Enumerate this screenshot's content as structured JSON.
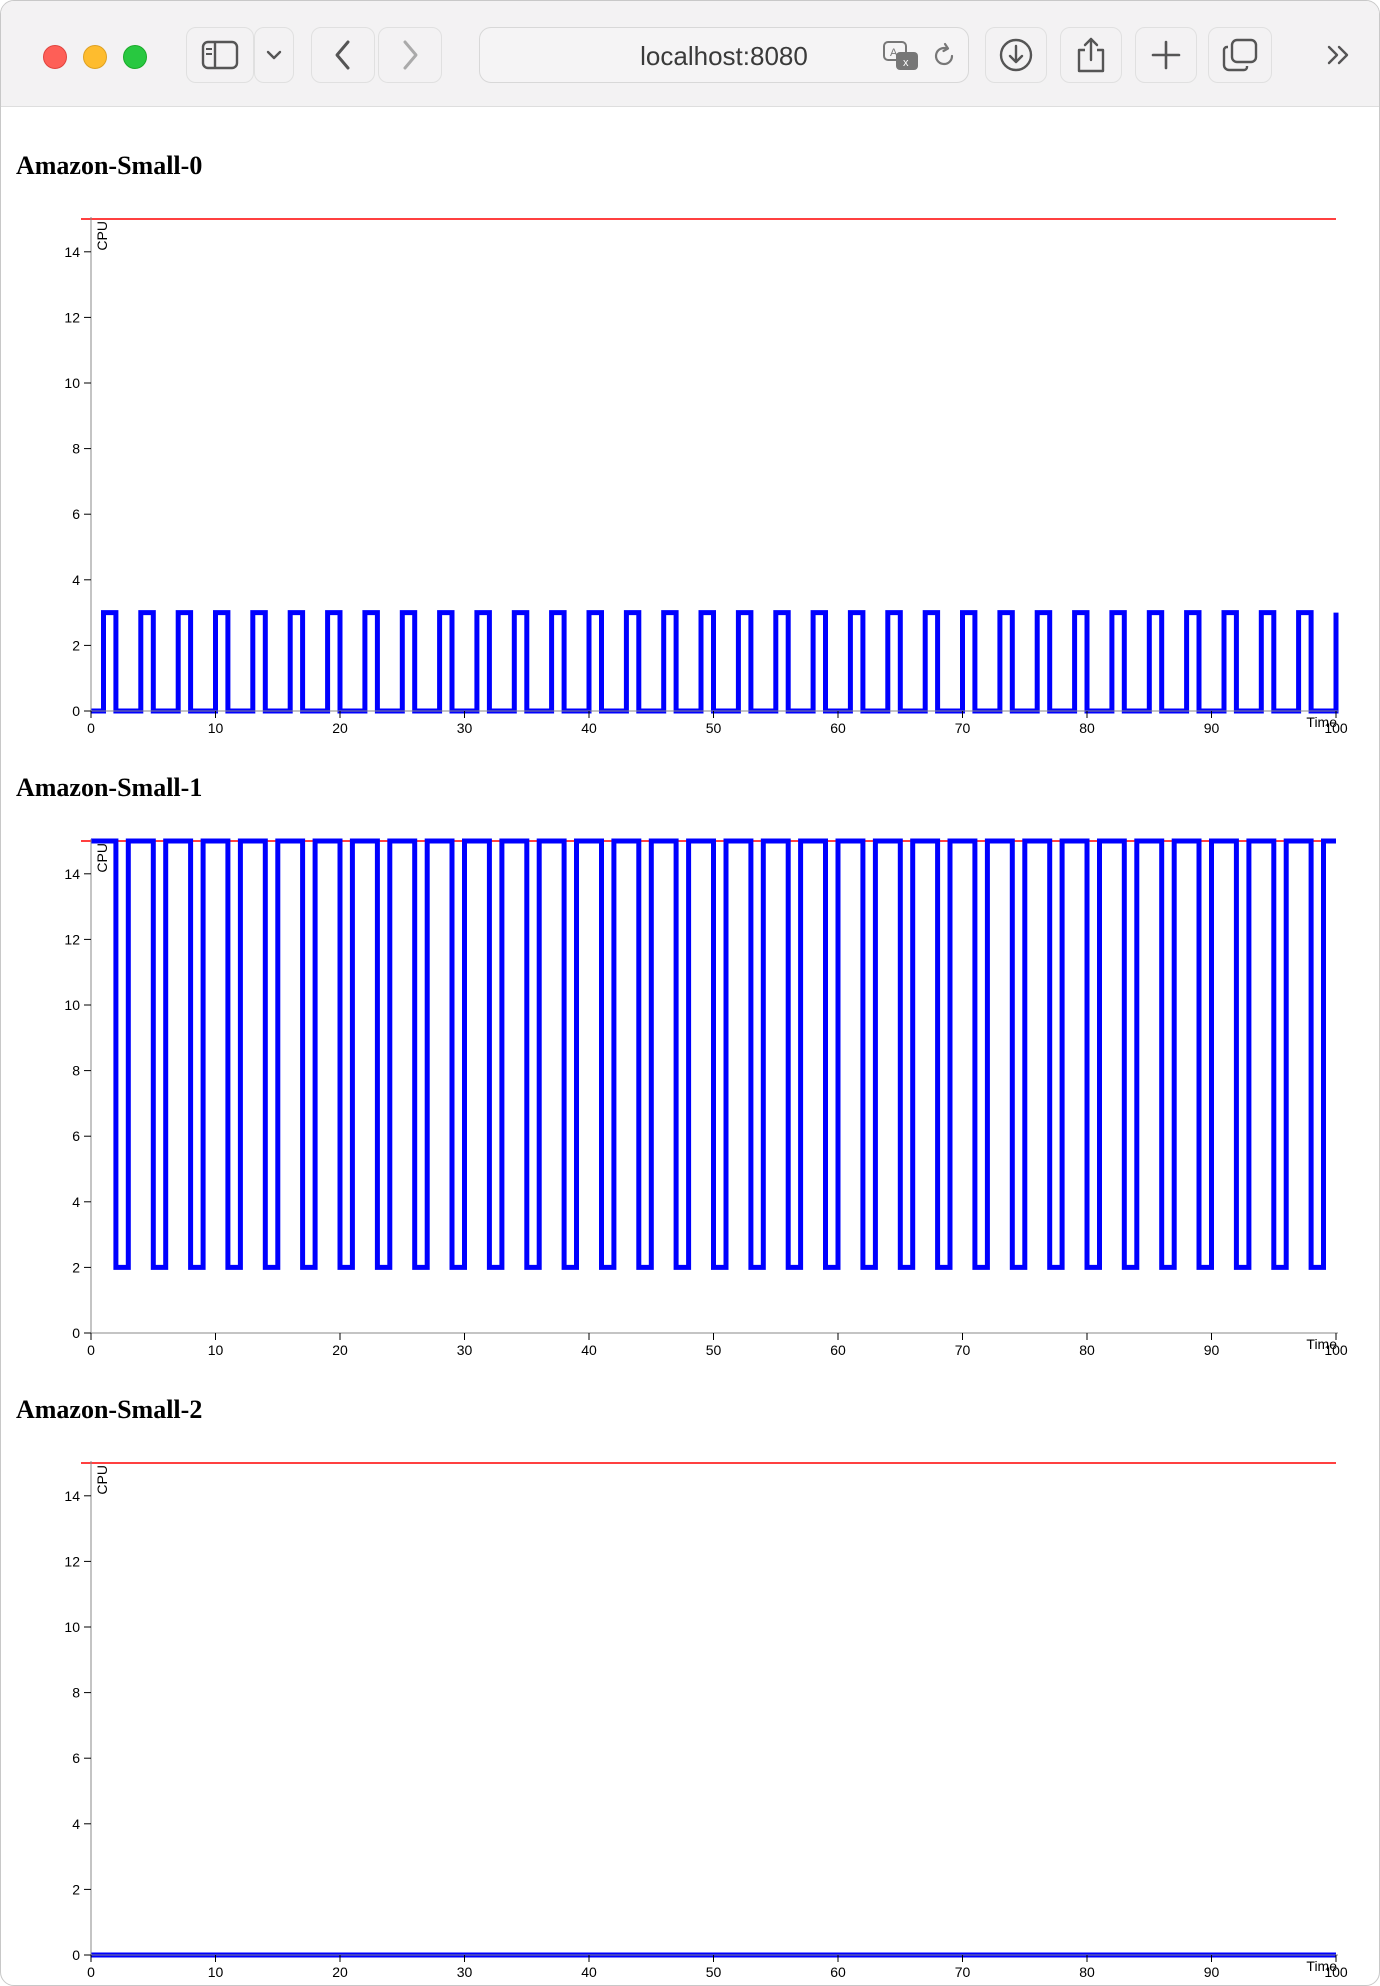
{
  "browser": {
    "url": "localhost:8080",
    "icons": [
      "sidebar-icon",
      "chevron-down-icon",
      "back-icon",
      "forward-icon",
      "translate-icon",
      "reload-icon",
      "download-icon",
      "share-icon",
      "new-tab-icon",
      "tabs-overview-icon",
      "more-icon"
    ]
  },
  "colors": {
    "series": "#0000ff",
    "threshold": "#ff0000",
    "axis": "#888888"
  },
  "chart_data": [
    {
      "type": "line",
      "title": "Amazon-Small-0",
      "xlabel": "Time",
      "ylabel": "CPU",
      "xlim": [
        0,
        100
      ],
      "ylim": [
        0,
        15
      ],
      "x_ticks": [
        "0",
        "10",
        "20",
        "30",
        "40",
        "50",
        "60",
        "70",
        "80",
        "90",
        "100"
      ],
      "y_ticks": [
        "0",
        "2",
        "4",
        "6",
        "8",
        "10",
        "12",
        "14"
      ],
      "threshold": 15,
      "series": [
        {
          "pattern": "square-wave",
          "low": 0,
          "high": 3,
          "period": 3,
          "high_start": 1,
          "high_duration": 1
        }
      ]
    },
    {
      "type": "line",
      "title": "Amazon-Small-1",
      "xlabel": "Time",
      "ylabel": "CPU",
      "xlim": [
        0,
        100
      ],
      "ylim": [
        0,
        15
      ],
      "x_ticks": [
        "0",
        "10",
        "20",
        "30",
        "40",
        "50",
        "60",
        "70",
        "80",
        "90",
        "100"
      ],
      "y_ticks": [
        "0",
        "2",
        "4",
        "6",
        "8",
        "10",
        "12",
        "14"
      ],
      "threshold": 15,
      "series": [
        {
          "pattern": "square-wave",
          "low": 2,
          "high": 15,
          "period": 3,
          "high_start": 0,
          "high_duration": 2
        }
      ]
    },
    {
      "type": "line",
      "title": "Amazon-Small-2",
      "xlabel": "Time",
      "ylabel": "CPU",
      "xlim": [
        0,
        100
      ],
      "ylim": [
        0,
        15
      ],
      "x_ticks": [
        "0",
        "10",
        "20",
        "30",
        "40",
        "50",
        "60",
        "70",
        "80",
        "90",
        "100"
      ],
      "y_ticks": [
        "0",
        "2",
        "4",
        "6",
        "8",
        "10",
        "12",
        "14"
      ],
      "threshold": 15,
      "series": [
        {
          "pattern": "constant",
          "value": 0
        }
      ]
    }
  ]
}
